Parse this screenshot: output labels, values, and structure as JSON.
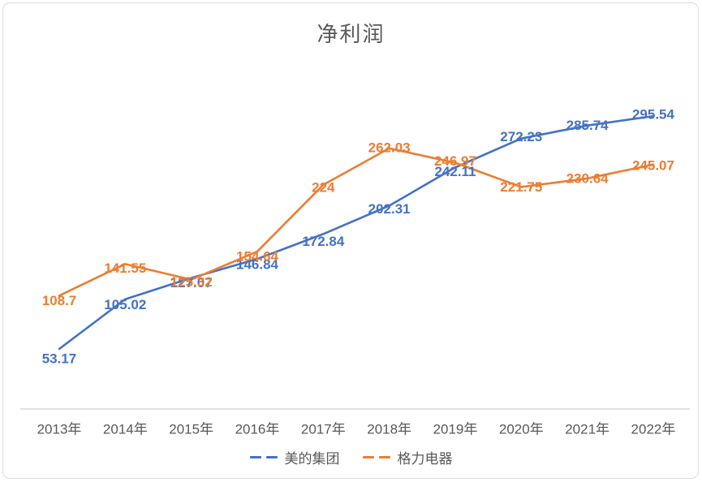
{
  "chart_data": {
    "type": "line",
    "title": "净利润",
    "categories": [
      "2013年",
      "2014年",
      "2015年",
      "2016年",
      "2017年",
      "2018年",
      "2019年",
      "2020年",
      "2021年",
      "2022年"
    ],
    "series": [
      {
        "name": "美的集团",
        "color": "#4472C4",
        "values": [
          53.17,
          105.02,
          127.07,
          146.84,
          172.84,
          202.31,
          242.11,
          272.23,
          285.74,
          295.54
        ]
      },
      {
        "name": "格力电器",
        "color": "#ED7D31",
        "values": [
          108.7,
          141.55,
          125.32,
          154.64,
          224,
          262.03,
          246.97,
          221.75,
          230.64,
          245.07
        ]
      }
    ],
    "xlabel": "",
    "ylabel": "",
    "ylim": [
      0,
      350
    ],
    "gridlines": false,
    "data_labels": true,
    "legend_position": "bottom",
    "axis_line_color": "#d9d9d9",
    "title_color": "#595959",
    "tick_color": "#595959"
  }
}
